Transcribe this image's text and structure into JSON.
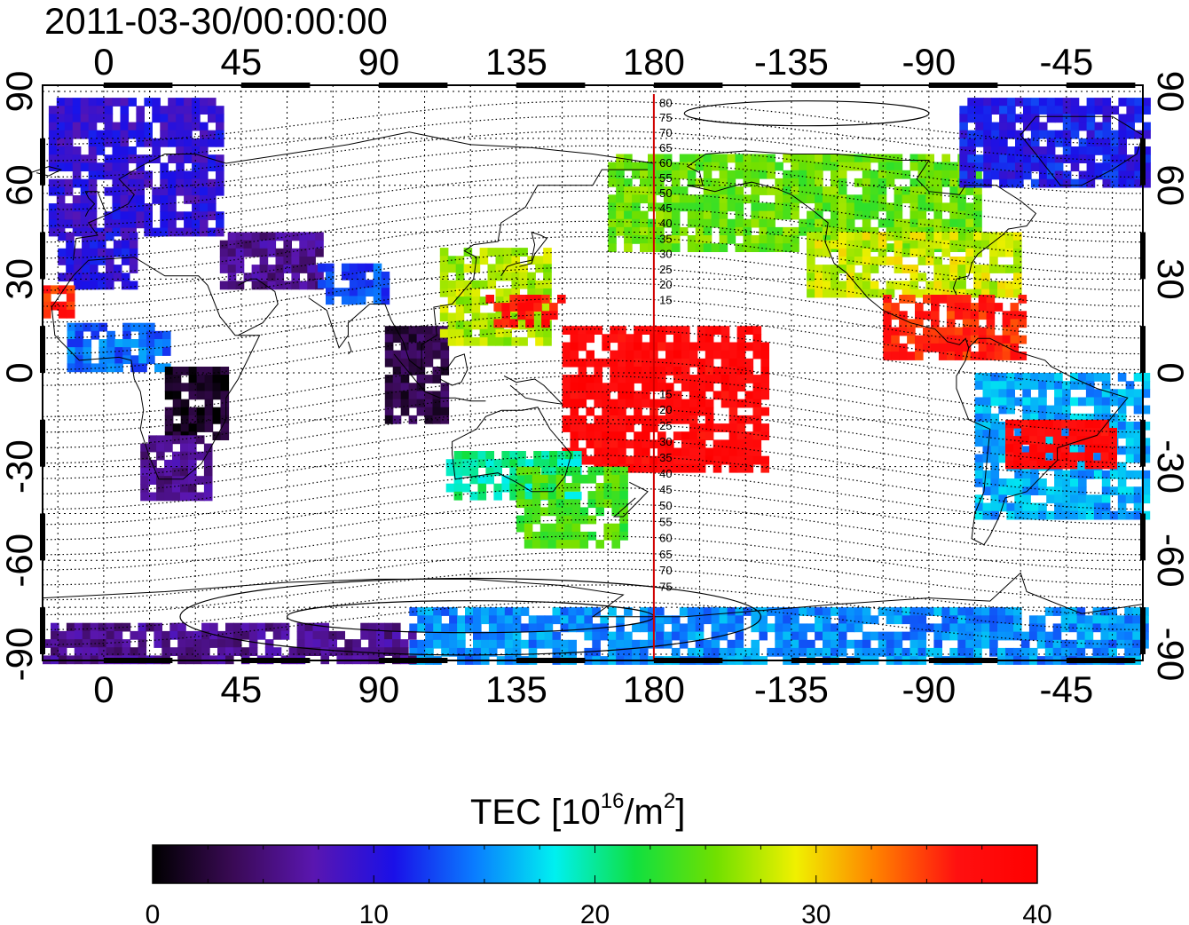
{
  "title": "2011-03-30/00:00:00",
  "map": {
    "lon_ticks": [
      {
        "lon": 0,
        "label": "0"
      },
      {
        "lon": 45,
        "label": "45"
      },
      {
        "lon": 90,
        "label": "90"
      },
      {
        "lon": 135,
        "label": "135"
      },
      {
        "lon": 180,
        "label": "180"
      },
      {
        "lon": 225,
        "label": "-135"
      },
      {
        "lon": 270,
        "label": "-90"
      },
      {
        "lon": 315,
        "label": "-45"
      }
    ],
    "lat_ticks": [
      {
        "lat": 90,
        "label": "90"
      },
      {
        "lat": 60,
        "label": "60"
      },
      {
        "lat": 30,
        "label": "30"
      },
      {
        "lat": 0,
        "label": "0"
      },
      {
        "lat": -30,
        "label": "-30"
      },
      {
        "lat": -60,
        "label": "-60"
      },
      {
        "lat": -90,
        "label": "-90"
      }
    ],
    "lon_range": [
      -20,
      340
    ],
    "lat_range": [
      -92,
      92
    ],
    "meridian_lon": 180,
    "meridian_color": "#d00000",
    "contour_labels": [
      {
        "lat": 80,
        "label": "80"
      },
      {
        "lat": 75,
        "label": "75"
      },
      {
        "lat": 70,
        "label": "70"
      },
      {
        "lat": 65,
        "label": "65"
      },
      {
        "lat": 60,
        "label": "60"
      },
      {
        "lat": 55,
        "label": "55"
      },
      {
        "lat": 50,
        "label": "50"
      },
      {
        "lat": 45,
        "label": "45"
      },
      {
        "lat": 40,
        "label": "40"
      },
      {
        "lat": 35,
        "label": "35"
      },
      {
        "lat": 30,
        "label": "30"
      },
      {
        "lat": 25,
        "label": "25"
      },
      {
        "lat": 20,
        "label": "20"
      },
      {
        "lat": 15,
        "label": "15"
      },
      {
        "lat": -15,
        "label": "15"
      },
      {
        "lat": -20,
        "label": "20"
      },
      {
        "lat": -25,
        "label": "25"
      },
      {
        "lat": -30,
        "label": "30"
      },
      {
        "lat": -35,
        "label": "35"
      },
      {
        "lat": -40,
        "label": "40"
      },
      {
        "lat": -45,
        "label": "45"
      },
      {
        "lat": -50,
        "label": "50"
      },
      {
        "lat": -55,
        "label": "55"
      },
      {
        "lat": -60,
        "label": "60"
      },
      {
        "lat": -65,
        "label": "65"
      },
      {
        "lat": -70,
        "label": "70"
      },
      {
        "lat": -75,
        "label": "75"
      }
    ]
  },
  "colorbar": {
    "label_main": "TEC  [10",
    "label_sup": "16",
    "label_mid": "/m",
    "label_sup2": "2",
    "label_end": "]",
    "min": 0,
    "max": 40,
    "ticks": [
      {
        "value": 0,
        "label": "0"
      },
      {
        "value": 10,
        "label": "10"
      },
      {
        "value": 20,
        "label": "20"
      },
      {
        "value": 30,
        "label": "30"
      },
      {
        "value": 40,
        "label": "40"
      }
    ],
    "colormap": [
      "#000000",
      "#3a0a55",
      "#5a16b0",
      "#1a10e8",
      "#0a7cff",
      "#00f0f0",
      "#10e040",
      "#70e000",
      "#f0f000",
      "#ff8000",
      "#ff1010",
      "#ff0000"
    ]
  },
  "chart_data": {
    "type": "heatmap",
    "title": "2011-03-30/00:00:00",
    "quantity": "TEC",
    "colorbar_range": [
      0,
      40
    ],
    "regions": [
      {
        "lon": [
          -18,
          38
        ],
        "lat": [
          45,
          88
        ],
        "tec": 9.5
      },
      {
        "lon": [
          -15,
          10
        ],
        "lat": [
          28,
          45
        ],
        "tec": 10
      },
      {
        "lon": [
          -20,
          -12
        ],
        "lat": [
          18,
          28
        ],
        "tec": 36
      },
      {
        "lon": [
          -12,
          20
        ],
        "lat": [
          2,
          16
        ],
        "tec": 14
      },
      {
        "lon": [
          20,
          40
        ],
        "lat": [
          -20,
          2
        ],
        "tec": 1.5
      },
      {
        "lon": [
          12,
          35
        ],
        "lat": [
          -40,
          -20
        ],
        "tec": 6
      },
      {
        "lon": [
          38,
          70
        ],
        "lat": [
          28,
          45
        ],
        "tec": 6
      },
      {
        "lon": [
          70,
          92
        ],
        "lat": [
          22,
          35
        ],
        "tec": 13
      },
      {
        "lon": [
          92,
          112
        ],
        "lat": [
          -15,
          15
        ],
        "tec": 3
      },
      {
        "lon": [
          110,
          145
        ],
        "lat": [
          10,
          40
        ],
        "tec": 27
      },
      {
        "lon": [
          125,
          150
        ],
        "lat": [
          15,
          25
        ],
        "tec": 37
      },
      {
        "lon": [
          150,
          215
        ],
        "lat": [
          -30,
          15
        ],
        "tec": 38
      },
      {
        "lon": [
          112,
          155
        ],
        "lat": [
          -40,
          -25
        ],
        "tec": 20
      },
      {
        "lon": [
          135,
          170
        ],
        "lat": [
          -55,
          -30
        ],
        "tec": 24
      },
      {
        "lon": [
          165,
          285
        ],
        "lat": [
          40,
          70
        ],
        "tec": 25
      },
      {
        "lon": [
          230,
          300
        ],
        "lat": [
          25,
          45
        ],
        "tec": 28
      },
      {
        "lon": [
          255,
          300
        ],
        "lat": [
          5,
          25
        ],
        "tec": 36
      },
      {
        "lon": [
          285,
          340
        ],
        "lat": [
          -45,
          0
        ],
        "tec": 16
      },
      {
        "lon": [
          295,
          330
        ],
        "lat": [
          -30,
          -15
        ],
        "tec": 38
      },
      {
        "lon": [
          280,
          340
        ],
        "lat": [
          60,
          88
        ],
        "tec": 11
      },
      {
        "lon": [
          100,
          340
        ],
        "lat": [
          -92,
          -75
        ],
        "tec": 15
      },
      {
        "lon": [
          -20,
          100
        ],
        "lat": [
          -92,
          -80
        ],
        "tec": 6
      }
    ]
  }
}
